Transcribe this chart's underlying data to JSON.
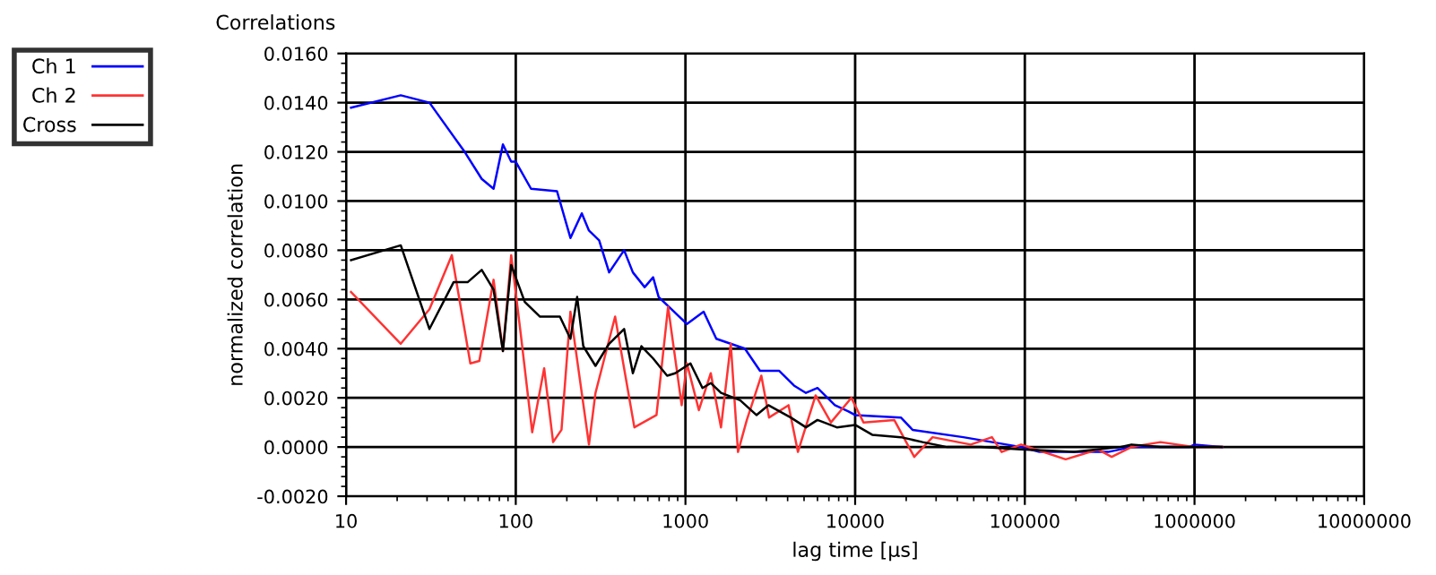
{
  "chart_data": {
    "type": "line",
    "title": "Correlations",
    "xlabel": "lag time [µs]",
    "ylabel": "normalized correlation",
    "log": "x",
    "grid": true,
    "legend": "top left",
    "line_style": "solid",
    "marker": "none",
    "xlim": [
      10,
      10000000
    ],
    "xticks": [
      10,
      100,
      1000,
      10000,
      100000,
      1000000,
      10000000
    ],
    "ylim": [
      -0.002,
      0.016
    ],
    "yticks": [
      {
        "value": -0.002,
        "label": "-0.0020"
      },
      {
        "value": 0,
        "label": "0.0000"
      },
      {
        "value": 0.002,
        "label": "0.0020"
      },
      {
        "value": 0.004,
        "label": "0.0040"
      },
      {
        "value": 0.006,
        "label": "0.0060"
      },
      {
        "value": 0.008,
        "label": "0.0080"
      },
      {
        "value": 0.01,
        "label": "0.0100"
      },
      {
        "value": 0.012,
        "label": "0.0120"
      },
      {
        "value": 0.014,
        "label": "0.0140"
      },
      {
        "value": 0.016,
        "label": "0.0160"
      }
    ],
    "series": [
      {
        "name": "Ch 1",
        "color": "#0000ff",
        "x": [
          10.7,
          21,
          31,
          50,
          63,
          74,
          84,
          94,
          100,
          123,
          175,
          210,
          245,
          270,
          310,
          355,
          435,
          490,
          575,
          645,
          695,
          1020,
          1280,
          1520,
          2240,
          2750,
          3560,
          4360,
          5130,
          6000,
          7600,
          9130,
          10000,
          18600,
          21800,
          43400,
          95000,
          122000,
          195000,
          310000,
          425000,
          930000,
          1000000,
          1450000
        ],
        "values": [
          0.0138,
          0.0143,
          0.014,
          0.012,
          0.0109,
          0.0105,
          0.0123,
          0.0116,
          0.0116,
          0.0105,
          0.0104,
          0.0085,
          0.0095,
          0.0088,
          0.0084,
          0.0071,
          0.008,
          0.0071,
          0.0065,
          0.0069,
          0.0061,
          0.005,
          0.0055,
          0.0044,
          0.004,
          0.0031,
          0.0031,
          0.0025,
          0.0022,
          0.0024,
          0.0017,
          0.00145,
          0.0013,
          0.0012,
          0.0007,
          0.0004,
          0.0,
          -0.0002,
          -0.0002,
          -0.0002,
          0.0,
          0.0,
          0.0001,
          0.0
        ]
      },
      {
        "name": "Ch 2",
        "color": "#ff3333",
        "x": [
          10.7,
          21,
          31,
          42,
          54,
          61,
          74,
          84,
          94,
          107,
          125,
          147,
          166,
          186,
          210,
          270,
          295,
          385,
          500,
          675,
          790,
          950,
          1020,
          1200,
          1410,
          1620,
          1850,
          2040,
          2300,
          2800,
          3110,
          4050,
          4600,
          5850,
          7200,
          9500,
          11200,
          17000,
          22300,
          28600,
          48000,
          64000,
          73000,
          95000,
          174000,
          270000,
          325000,
          425000,
          630000,
          1000000,
          1450000
        ],
        "values": [
          0.0063,
          0.0042,
          0.0056,
          0.0078,
          0.0034,
          0.0035,
          0.0068,
          0.0039,
          0.0078,
          0.0046,
          0.0006,
          0.0032,
          0.0002,
          0.0007,
          0.0055,
          0.0001,
          0.0022,
          0.0053,
          0.0008,
          0.0013,
          0.0057,
          0.0017,
          0.0034,
          0.0015,
          0.003,
          0.0008,
          0.0042,
          -0.0002,
          0.0011,
          0.0029,
          0.0012,
          0.0017,
          -0.0002,
          0.0021,
          0.001,
          0.002,
          0.001,
          0.0011,
          -0.0004,
          0.0004,
          0.0001,
          0.0004,
          -0.0002,
          0.0001,
          -0.0005,
          -0.0001,
          -0.0004,
          0.0,
          0.0002,
          0.0,
          0.0
        ]
      },
      {
        "name": "Cross",
        "color": "#000000",
        "x": [
          10.7,
          21,
          31,
          43,
          52,
          63,
          74,
          84,
          94,
          113,
          139,
          182,
          210,
          230,
          250,
          295,
          355,
          435,
          490,
          550,
          645,
          780,
          870,
          1070,
          1260,
          1410,
          1620,
          2100,
          2620,
          3080,
          4170,
          5130,
          6000,
          7800,
          10000,
          12600,
          18600,
          25000,
          34800,
          55000,
          95000,
          195000,
          365000,
          425000,
          630000,
          1000000,
          1450000
        ],
        "values": [
          0.0076,
          0.0082,
          0.0048,
          0.0067,
          0.0067,
          0.0072,
          0.0064,
          0.0039,
          0.0074,
          0.0059,
          0.0053,
          0.0053,
          0.0044,
          0.0061,
          0.0041,
          0.0033,
          0.0042,
          0.0048,
          0.003,
          0.0041,
          0.0036,
          0.0029,
          0.003,
          0.0034,
          0.0024,
          0.0026,
          0.0022,
          0.0019,
          0.0013,
          0.0017,
          0.0012,
          0.0008,
          0.0011,
          0.0008,
          0.0009,
          0.0005,
          0.0004,
          0.0002,
          0.0,
          0.0,
          -0.0001,
          -0.0002,
          0.0,
          0.0001,
          0.0,
          0.0,
          0.0
        ]
      }
    ]
  }
}
